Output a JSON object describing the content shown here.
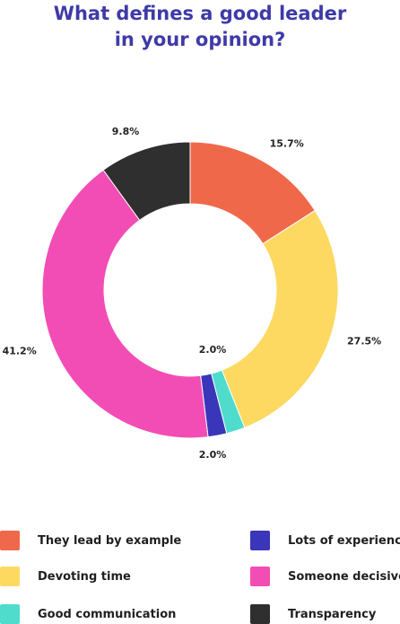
{
  "title_line1": "What defines a good leader",
  "title_line2": "in your opinion?",
  "title_color": "#3f3aa7",
  "chart_data": {
    "type": "pie",
    "donut": true,
    "categories": [
      "They lead by example",
      "Devoting time",
      "Good communication",
      "Lots of experience",
      "Someone decisive",
      "Transparency"
    ],
    "values": [
      15.7,
      27.5,
      2.0,
      2.0,
      41.2,
      9.8
    ],
    "value_labels": [
      "15.7%",
      "27.5%",
      "2.0%",
      "2.0%",
      "41.2%",
      "9.8%"
    ],
    "colors": [
      "#f0684a",
      "#fdd962",
      "#4fdccc",
      "#3a36b9",
      "#f24db5",
      "#2f2f2f"
    ],
    "legend_placement": "bottom"
  },
  "legend": {
    "items": [
      {
        "label": "They lead by example",
        "color": "#f0684a"
      },
      {
        "label": "Lots of experience",
        "color": "#3a36b9"
      },
      {
        "label": "Devoting time",
        "color": "#fdd962"
      },
      {
        "label": "Someone decisive",
        "color": "#f24db5"
      },
      {
        "label": "Good communication",
        "color": "#4fdccc"
      },
      {
        "label": "Transparency",
        "color": "#2f2f2f"
      }
    ]
  }
}
